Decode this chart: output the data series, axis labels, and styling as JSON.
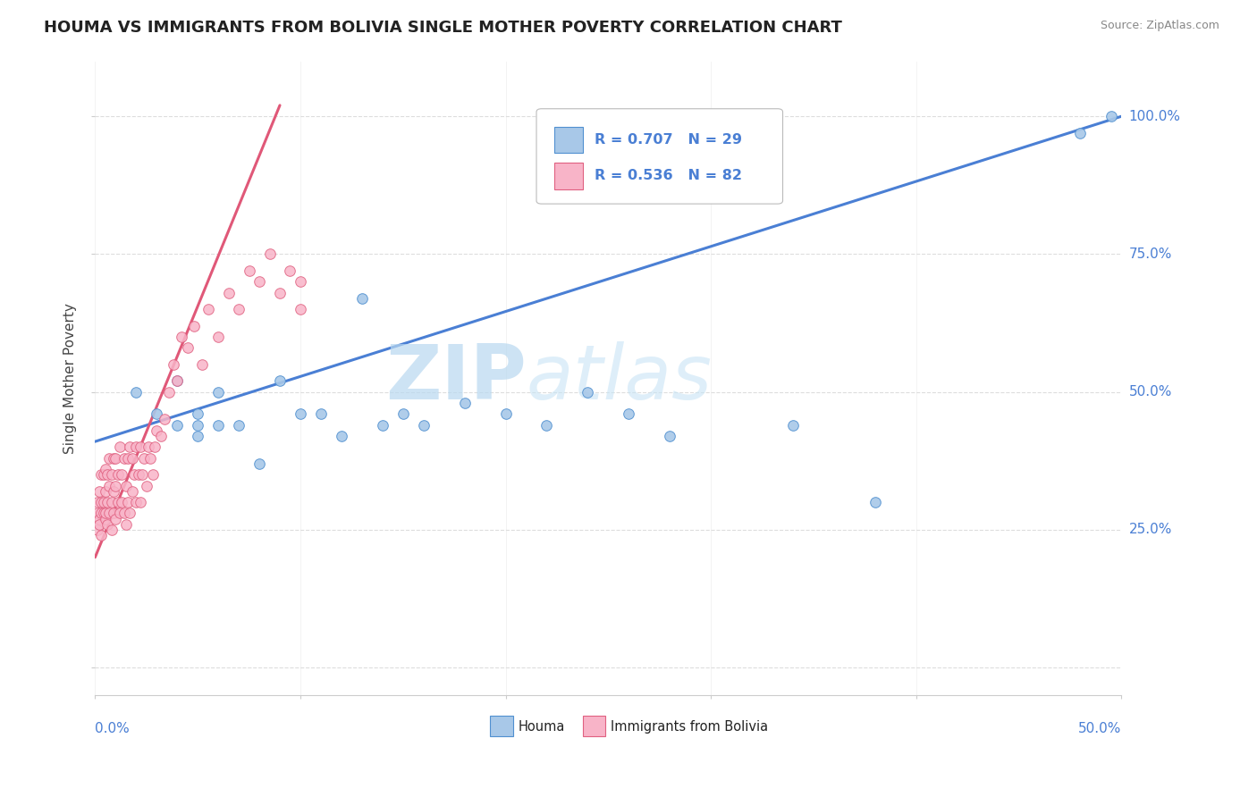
{
  "title": "HOUMA VS IMMIGRANTS FROM BOLIVIA SINGLE MOTHER POVERTY CORRELATION CHART",
  "source": "Source: ZipAtlas.com",
  "ylabel": "Single Mother Poverty",
  "xlim": [
    0.0,
    0.5
  ],
  "ylim": [
    -0.05,
    1.1
  ],
  "houma_R": 0.707,
  "houma_N": 29,
  "bolivia_R": 0.536,
  "bolivia_N": 82,
  "houma_color": "#a8c8e8",
  "bolivia_color": "#f8b4c8",
  "houma_edge_color": "#5090d0",
  "bolivia_edge_color": "#e06080",
  "houma_line_color": "#4a7fd4",
  "bolivia_line_color": "#e05878",
  "tick_color": "#4a7fd4",
  "watermark_color": "#cde8f5",
  "houma_x": [
    0.02,
    0.03,
    0.04,
    0.04,
    0.05,
    0.05,
    0.05,
    0.06,
    0.06,
    0.07,
    0.08,
    0.09,
    0.1,
    0.11,
    0.12,
    0.13,
    0.14,
    0.15,
    0.16,
    0.18,
    0.2,
    0.22,
    0.24,
    0.26,
    0.28,
    0.34,
    0.38,
    0.48,
    0.495
  ],
  "houma_y": [
    0.5,
    0.46,
    0.44,
    0.52,
    0.44,
    0.46,
    0.42,
    0.44,
    0.5,
    0.44,
    0.37,
    0.52,
    0.46,
    0.46,
    0.42,
    0.67,
    0.44,
    0.46,
    0.44,
    0.48,
    0.46,
    0.44,
    0.5,
    0.46,
    0.42,
    0.44,
    0.3,
    0.97,
    1.0
  ],
  "bolivia_x": [
    0.001,
    0.001,
    0.001,
    0.002,
    0.002,
    0.002,
    0.003,
    0.003,
    0.003,
    0.003,
    0.004,
    0.004,
    0.004,
    0.005,
    0.005,
    0.005,
    0.005,
    0.006,
    0.006,
    0.006,
    0.007,
    0.007,
    0.007,
    0.008,
    0.008,
    0.008,
    0.009,
    0.009,
    0.009,
    0.01,
    0.01,
    0.01,
    0.011,
    0.011,
    0.012,
    0.012,
    0.013,
    0.013,
    0.014,
    0.014,
    0.015,
    0.015,
    0.016,
    0.016,
    0.017,
    0.017,
    0.018,
    0.018,
    0.019,
    0.02,
    0.02,
    0.021,
    0.022,
    0.022,
    0.023,
    0.024,
    0.025,
    0.026,
    0.027,
    0.028,
    0.029,
    0.03,
    0.032,
    0.034,
    0.036,
    0.038,
    0.04,
    0.042,
    0.045,
    0.048,
    0.052,
    0.055,
    0.06,
    0.065,
    0.07,
    0.075,
    0.08,
    0.085,
    0.09,
    0.095,
    0.1,
    0.1
  ],
  "bolivia_y": [
    0.28,
    0.3,
    0.25,
    0.27,
    0.32,
    0.26,
    0.3,
    0.28,
    0.35,
    0.24,
    0.3,
    0.28,
    0.35,
    0.27,
    0.32,
    0.28,
    0.36,
    0.3,
    0.26,
    0.35,
    0.28,
    0.33,
    0.38,
    0.3,
    0.25,
    0.35,
    0.28,
    0.32,
    0.38,
    0.27,
    0.33,
    0.38,
    0.3,
    0.35,
    0.28,
    0.4,
    0.3,
    0.35,
    0.28,
    0.38,
    0.26,
    0.33,
    0.3,
    0.38,
    0.28,
    0.4,
    0.32,
    0.38,
    0.35,
    0.3,
    0.4,
    0.35,
    0.3,
    0.4,
    0.35,
    0.38,
    0.33,
    0.4,
    0.38,
    0.35,
    0.4,
    0.43,
    0.42,
    0.45,
    0.5,
    0.55,
    0.52,
    0.6,
    0.58,
    0.62,
    0.55,
    0.65,
    0.6,
    0.68,
    0.65,
    0.72,
    0.7,
    0.75,
    0.68,
    0.72,
    0.65,
    0.7
  ],
  "houma_line_x": [
    0.0,
    0.5
  ],
  "houma_line_y": [
    0.41,
    1.0
  ],
  "bolivia_line_x": [
    0.0,
    0.09
  ],
  "bolivia_line_y": [
    0.2,
    1.02
  ]
}
